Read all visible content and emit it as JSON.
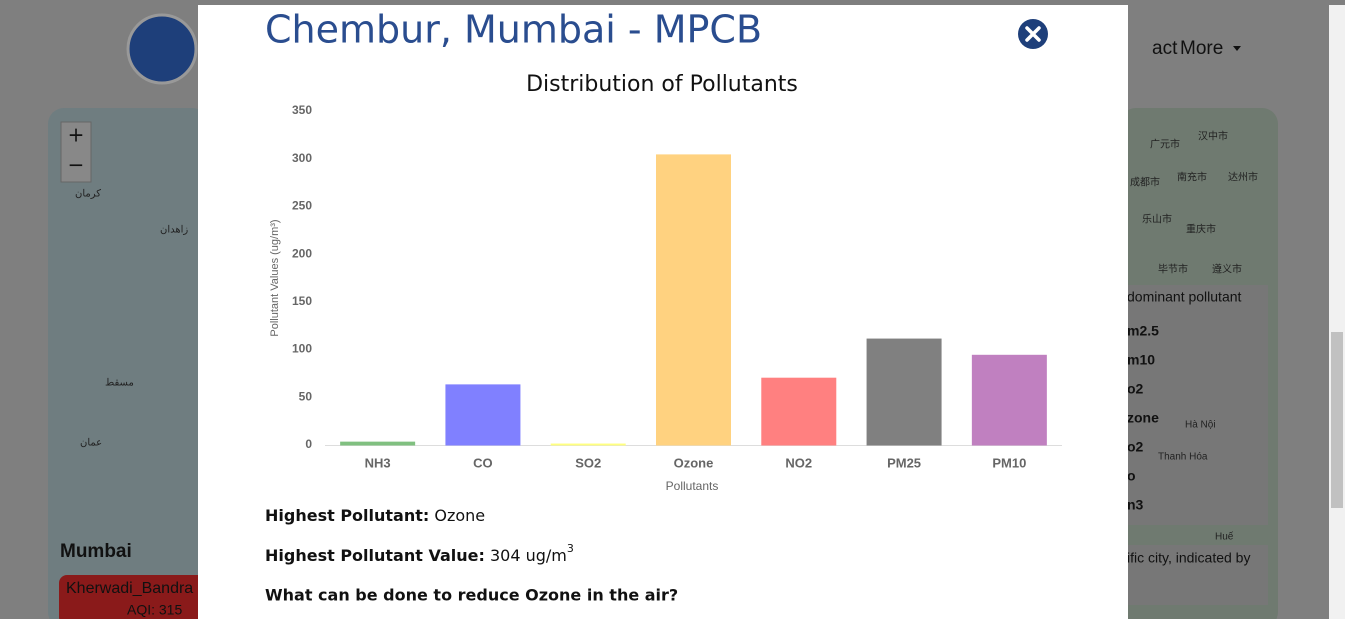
{
  "background": {
    "nav": [
      "act",
      "More"
    ],
    "map_left": [
      "كرمان",
      "زاهدان",
      "مسقط",
      "عمان"
    ],
    "map_right": [
      "汉中市",
      "广元市",
      "成都市",
      "南充市",
      "达州市",
      "乐山市",
      "重庆市",
      "毕节市",
      "遵义市",
      "Hà Nội",
      "Thanh Hóa",
      "Huế"
    ],
    "city": "Mumbai",
    "station": "Kherwadi_Bandra",
    "station_aqi": "AQI: 315",
    "legend": [
      "dominant pollutant",
      "m2.5",
      "m10",
      "o2",
      "zone",
      "o2",
      "o",
      "n3"
    ],
    "note": "ific city, indicated by"
  },
  "modal": {
    "title": "Chembur, Mumbai - MPCB",
    "chart": {
      "type": "bar",
      "title": "Distribution of Pollutants",
      "x_label": "Pollutants",
      "y_label": "Pollutant Values (ug/m³)",
      "categories": [
        "NH3",
        "CO",
        "SO2",
        "Ozone",
        "NO2",
        "PM25",
        "PM10"
      ],
      "values": [
        3,
        63,
        1,
        304,
        70,
        111,
        94
      ],
      "colors": [
        "#80c080",
        "#8080ff",
        "#ffff80",
        "#ffd280",
        "#ff8080",
        "#808080",
        "#c080c0"
      ],
      "ylim": [
        0,
        350
      ],
      "yticks": [
        0,
        50,
        100,
        150,
        200,
        250,
        300,
        350
      ],
      "grid": false
    },
    "highest_label": "Highest Pollutant:",
    "highest": "Ozone",
    "highest_value_label": "Highest Pollutant Value:",
    "highest_value": "304 ug/m",
    "highest_value_sup": "3",
    "question": "What can be done to reduce Ozone in the air?"
  }
}
